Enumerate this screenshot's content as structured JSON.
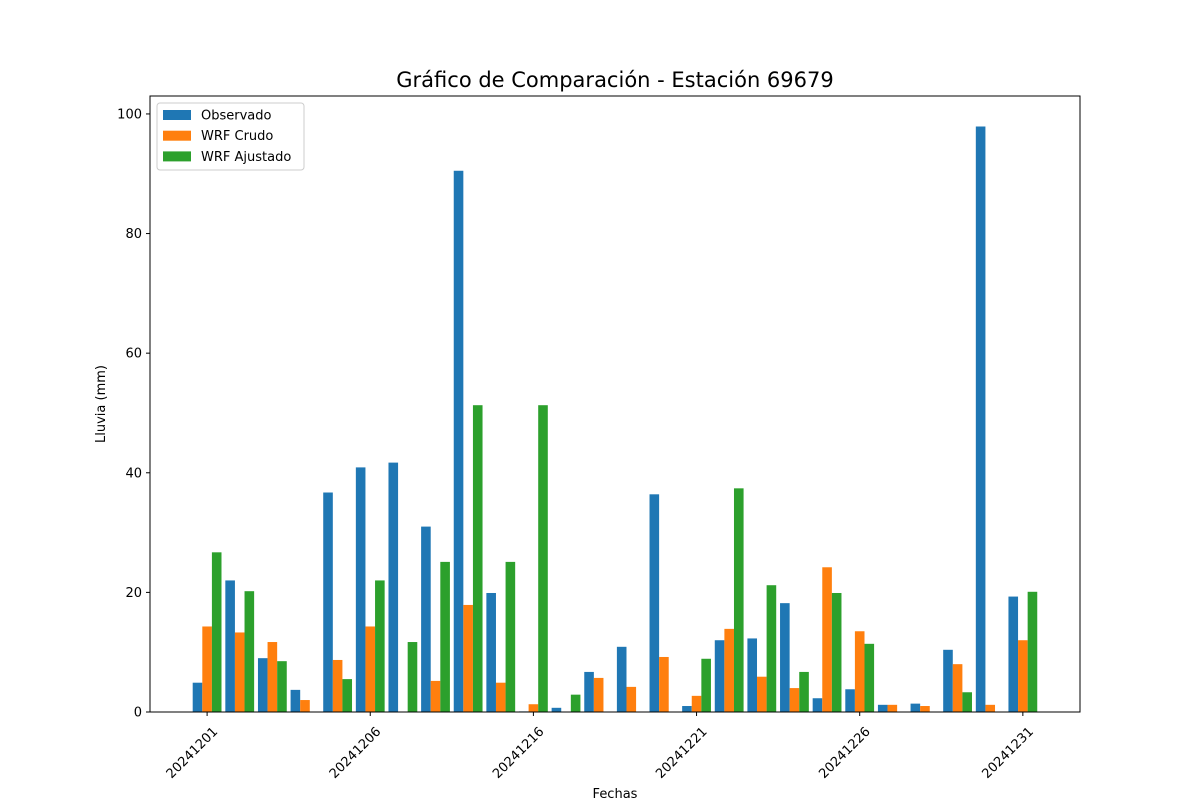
{
  "chart_data": {
    "type": "bar",
    "title": "Gráfico de Comparación - Estación 69679",
    "xlabel": "Fechas",
    "ylabel": "Lluvia (mm)",
    "ylim": [
      0,
      103
    ],
    "yticks": [
      0,
      20,
      40,
      60,
      80,
      100
    ],
    "legend_position": "top-left",
    "grid": false,
    "xticks": [
      {
        "label": "20241201",
        "index": 0
      },
      {
        "label": "20241206",
        "index": 5
      },
      {
        "label": "20241216",
        "index": 10
      },
      {
        "label": "20241221",
        "index": 15
      },
      {
        "label": "20241226",
        "index": 20
      },
      {
        "label": "20241231",
        "index": 25
      }
    ],
    "series": [
      {
        "name": "Observado",
        "color": "#1f77b4",
        "values": [
          4.9,
          22.0,
          9.0,
          3.7,
          36.7,
          40.9,
          41.7,
          31.0,
          90.5,
          19.9,
          0.1,
          0.7,
          6.7,
          10.9,
          36.4,
          1.0,
          12.0,
          12.3,
          18.2,
          2.3,
          3.8,
          1.2,
          1.4,
          10.4,
          97.9,
          19.3
        ]
      },
      {
        "name": "WRF Crudo",
        "color": "#ff7f0e",
        "values": [
          14.3,
          13.3,
          11.7,
          2.0,
          8.7,
          14.3,
          0.0,
          5.2,
          17.9,
          4.9,
          1.3,
          0.0,
          5.7,
          4.2,
          9.2,
          2.7,
          13.9,
          5.9,
          4.0,
          24.2,
          13.5,
          1.2,
          1.0,
          8.0,
          1.2,
          12.0
        ]
      },
      {
        "name": "WRF Ajustado",
        "color": "#2ca02c",
        "values": [
          26.7,
          20.2,
          8.5,
          0.0,
          5.5,
          22.0,
          11.7,
          25.1,
          51.3,
          25.1,
          51.3,
          2.9,
          0.0,
          0.0,
          0.0,
          8.9,
          37.4,
          21.2,
          6.7,
          19.9,
          11.4,
          0.0,
          0.0,
          3.3,
          0.0,
          20.1
        ]
      }
    ]
  }
}
